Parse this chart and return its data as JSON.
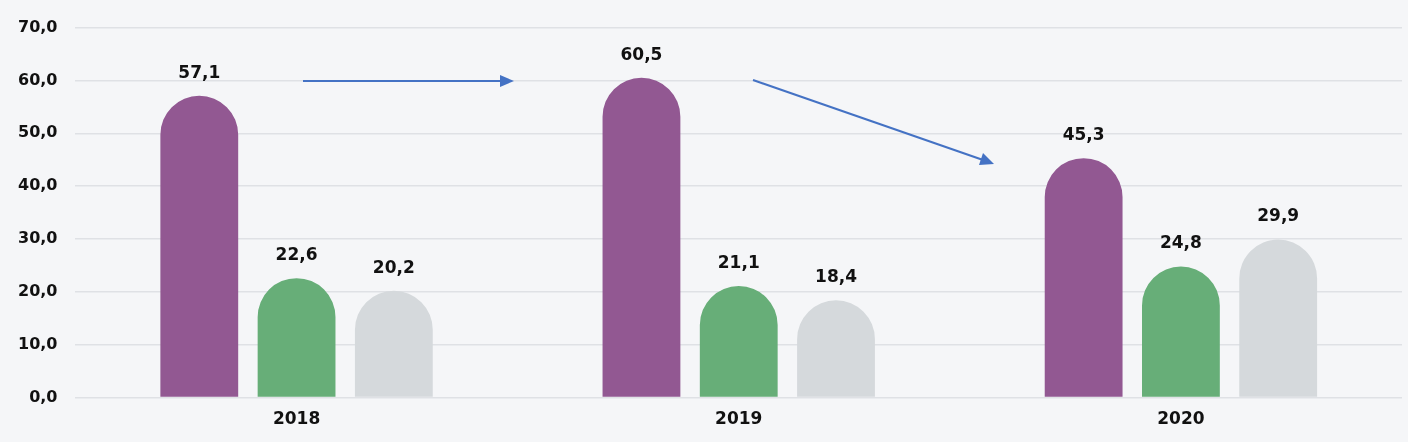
{
  "chart_data": {
    "type": "bar",
    "categories": [
      "2018",
      "2019",
      "2020"
    ],
    "series": [
      {
        "color": "#925892",
        "values": [
          57.1,
          60.5,
          45.3
        ],
        "value_labels": [
          "57,1",
          "60,5",
          "45,3"
        ]
      },
      {
        "color": "#67ae78",
        "values": [
          22.6,
          21.1,
          24.8
        ],
        "value_labels": [
          "22,6",
          "21,1",
          "24,8"
        ]
      },
      {
        "color": "#d5d9dc",
        "values": [
          20.2,
          18.4,
          29.9
        ],
        "value_labels": [
          "20,2",
          "18,4",
          "29,9"
        ]
      }
    ],
    "ylim": [
      0,
      70
    ],
    "yticks": [
      {
        "value": 0,
        "label": "0,0"
      },
      {
        "value": 10,
        "label": "10,0"
      },
      {
        "value": 20,
        "label": "20,0"
      },
      {
        "value": 30,
        "label": "30,0"
      },
      {
        "value": 40,
        "label": "40,0"
      },
      {
        "value": 50,
        "label": "50,0"
      },
      {
        "value": 60,
        "label": "60,0"
      },
      {
        "value": 70,
        "label": "70,0"
      }
    ],
    "grid": "y",
    "legend": false
  }
}
